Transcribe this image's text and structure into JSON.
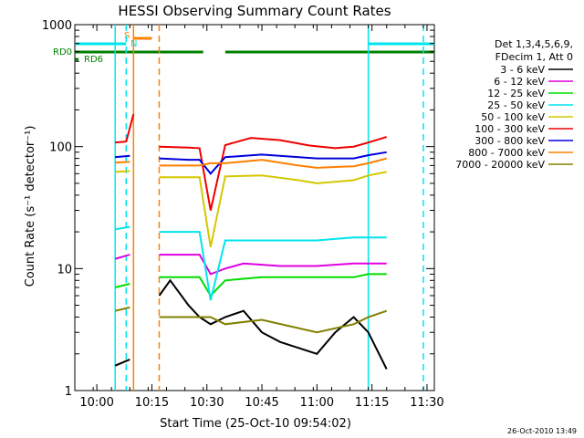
{
  "chart_data": {
    "type": "line",
    "title": "HESSI Observing Summary Count Rates",
    "xlabel": "Start Time (25-Oct-10 09:54:02)",
    "ylabel": "Count Rate (s⁻¹ detector⁻¹)",
    "yscale": "log",
    "ylim": [
      1,
      1000
    ],
    "xlim": [
      "09:54",
      "11:32"
    ],
    "x_ticks": [
      "10:00",
      "10:15",
      "10:30",
      "10:45",
      "11:00",
      "11:15",
      "11:30"
    ],
    "y_ticks": [
      "1",
      "10",
      "100",
      "1000"
    ],
    "grid": false,
    "legend_position": "right",
    "legend_header": [
      "Det 1,3,4,5,6,9,",
      "FDecim 1, Att 0"
    ],
    "series": [
      {
        "name": "3 - 6 keV",
        "color": "#000000",
        "points": [
          [
            "10:05",
            1.6
          ],
          [
            "10:09",
            1.8
          ],
          [
            "10:17",
            6.0
          ],
          [
            "10:20",
            8.0
          ],
          [
            "10:25",
            5.0
          ],
          [
            "10:28",
            4.0
          ],
          [
            "10:31",
            3.5
          ],
          [
            "10:35",
            4.0
          ],
          [
            "10:40",
            4.5
          ],
          [
            "10:45",
            3.0
          ],
          [
            "10:50",
            2.5
          ],
          [
            "11:00",
            2.0
          ],
          [
            "11:05",
            3.0
          ],
          [
            "11:10",
            4.0
          ],
          [
            "11:14",
            3.0
          ],
          [
            "11:19",
            1.5
          ]
        ]
      },
      {
        "name": "6 - 12 keV",
        "color": "#e000e0",
        "points": [
          [
            "10:05",
            12
          ],
          [
            "10:09",
            13
          ],
          [
            "10:17",
            13
          ],
          [
            "10:25",
            13
          ],
          [
            "10:28",
            13
          ],
          [
            "10:31",
            9
          ],
          [
            "10:35",
            10
          ],
          [
            "10:40",
            11
          ],
          [
            "10:50",
            10.5
          ],
          [
            "11:00",
            10.5
          ],
          [
            "11:10",
            11
          ],
          [
            "11:14",
            11
          ],
          [
            "11:19",
            11
          ]
        ]
      },
      {
        "name": "12 - 25 keV",
        "color": "#00dd00",
        "points": [
          [
            "10:05",
            7
          ],
          [
            "10:09",
            7.5
          ],
          [
            "10:17",
            8.5
          ],
          [
            "10:25",
            8.5
          ],
          [
            "10:28",
            8.5
          ],
          [
            "10:31",
            6
          ],
          [
            "10:35",
            8
          ],
          [
            "10:45",
            8.5
          ],
          [
            "11:00",
            8.5
          ],
          [
            "11:10",
            8.5
          ],
          [
            "11:14",
            9
          ],
          [
            "11:19",
            9
          ]
        ]
      },
      {
        "name": "25 - 50 keV",
        "color": "#00e5ee",
        "points": [
          [
            "10:05",
            21
          ],
          [
            "10:09",
            22
          ],
          [
            "10:17",
            20
          ],
          [
            "10:25",
            20
          ],
          [
            "10:28",
            20
          ],
          [
            "10:31",
            5.5
          ],
          [
            "10:35",
            17
          ],
          [
            "10:45",
            17
          ],
          [
            "11:00",
            17
          ],
          [
            "11:10",
            18
          ],
          [
            "11:14",
            18
          ],
          [
            "11:19",
            18
          ]
        ]
      },
      {
        "name": "50 - 100 keV",
        "color": "#d4c800",
        "points": [
          [
            "10:05",
            62
          ],
          [
            "10:09",
            63
          ],
          [
            "10:17",
            56
          ],
          [
            "10:25",
            56
          ],
          [
            "10:28",
            56
          ],
          [
            "10:31",
            15
          ],
          [
            "10:35",
            57
          ],
          [
            "10:45",
            58
          ],
          [
            "10:55",
            53
          ],
          [
            "11:00",
            50
          ],
          [
            "11:10",
            53
          ],
          [
            "11:14",
            58
          ],
          [
            "11:19",
            62
          ]
        ]
      },
      {
        "name": "100 - 300 keV",
        "color": "#ee0000",
        "points": [
          [
            "10:05",
            108
          ],
          [
            "10:08",
            110
          ],
          [
            "10:10",
            185
          ],
          [
            "10:17",
            100
          ],
          [
            "10:25",
            98
          ],
          [
            "10:28",
            97
          ],
          [
            "10:31",
            30
          ],
          [
            "10:35",
            103
          ],
          [
            "10:42",
            118
          ],
          [
            "10:50",
            113
          ],
          [
            "10:58",
            102
          ],
          [
            "11:05",
            97
          ],
          [
            "11:10",
            100
          ],
          [
            "11:14",
            108
          ],
          [
            "11:19",
            120
          ]
        ]
      },
      {
        "name": "300 - 800 keV",
        "color": "#0000dd",
        "points": [
          [
            "10:05",
            82
          ],
          [
            "10:09",
            84
          ],
          [
            "10:17",
            80
          ],
          [
            "10:25",
            78
          ],
          [
            "10:28",
            78
          ],
          [
            "10:31",
            60
          ],
          [
            "10:35",
            82
          ],
          [
            "10:45",
            86
          ],
          [
            "11:00",
            80
          ],
          [
            "11:10",
            80
          ],
          [
            "11:14",
            85
          ],
          [
            "11:19",
            90
          ]
        ]
      },
      {
        "name": "800 - 7000 keV",
        "color": "#ff8000",
        "points": [
          [
            "10:05",
            74
          ],
          [
            "10:09",
            75
          ],
          [
            "10:17",
            70
          ],
          [
            "10:25",
            70
          ],
          [
            "10:28",
            70
          ],
          [
            "10:31",
            73
          ],
          [
            "10:35",
            73
          ],
          [
            "10:45",
            78
          ],
          [
            "10:55",
            70
          ],
          [
            "11:00",
            67
          ],
          [
            "11:10",
            69
          ],
          [
            "11:14",
            73
          ],
          [
            "11:19",
            80
          ]
        ]
      },
      {
        "name": "7000 - 20000 keV",
        "color": "#808000",
        "points": [
          [
            "10:05",
            4.5
          ],
          [
            "10:09",
            4.8
          ],
          [
            "10:17",
            4.0
          ],
          [
            "10:25",
            4.0
          ],
          [
            "10:28",
            4.0
          ],
          [
            "10:31",
            4.0
          ],
          [
            "10:35",
            3.5
          ],
          [
            "10:45",
            3.8
          ],
          [
            "11:00",
            3.0
          ],
          [
            "11:10",
            3.5
          ],
          [
            "11:14",
            4.0
          ],
          [
            "11:19",
            4.5
          ]
        ]
      }
    ],
    "flags": [
      {
        "name": "RD0",
        "color": "#008000",
        "segments": [
          [
            "09:54",
            "10:29"
          ],
          [
            "10:35",
            "11:32"
          ]
        ]
      },
      {
        "name": "RD6",
        "color": "#008000",
        "segments": [
          [
            "09:54",
            "09:55"
          ]
        ]
      },
      {
        "name": "S",
        "color": "#ff8000",
        "segments": [
          [
            "10:10",
            "10:15"
          ]
        ]
      },
      {
        "name": "N",
        "color": "#00e5ee",
        "segments": [
          [
            "09:54",
            "10:08"
          ],
          [
            "11:14",
            "11:32"
          ]
        ]
      }
    ],
    "vlines": [
      {
        "color": "#00e5ee",
        "style": "solid",
        "time": "10:05"
      },
      {
        "color": "#00e5ee",
        "style": "dashed",
        "time": "10:08"
      },
      {
        "color": "#ff8000",
        "style": "solid",
        "time": "10:10"
      },
      {
        "color": "#ff8000",
        "style": "dashed",
        "time": "10:17"
      },
      {
        "color": "#00e5ee",
        "style": "solid",
        "time": "11:14"
      },
      {
        "color": "#00e5ee",
        "style": "dashed",
        "time": "11:29"
      }
    ],
    "gaps": [
      [
        "10:10",
        "10:17"
      ]
    ],
    "footer": "26-Oct-2010 13:49"
  }
}
